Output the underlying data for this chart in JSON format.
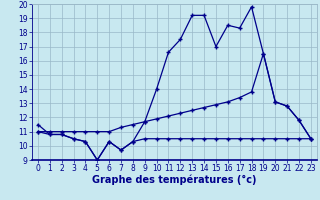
{
  "xlabel": "Graphe des températures (°c)",
  "x": [
    0,
    1,
    2,
    3,
    4,
    5,
    6,
    7,
    8,
    9,
    10,
    11,
    12,
    13,
    14,
    15,
    16,
    17,
    18,
    19,
    20,
    21,
    22,
    23
  ],
  "line_max": [
    11.5,
    10.8,
    10.8,
    10.5,
    10.3,
    9.0,
    10.3,
    9.7,
    10.3,
    11.7,
    14.0,
    16.6,
    17.5,
    19.2,
    19.2,
    17.0,
    18.5,
    18.3,
    19.8,
    16.5,
    13.1,
    12.8,
    11.8,
    10.5
  ],
  "line_avg": [
    11.0,
    11.0,
    11.0,
    11.0,
    11.0,
    11.0,
    11.0,
    11.3,
    11.5,
    11.7,
    11.9,
    12.1,
    12.3,
    12.5,
    12.7,
    12.9,
    13.1,
    13.4,
    13.8,
    16.5,
    13.1,
    12.8,
    11.8,
    10.5
  ],
  "line_min": [
    11.0,
    10.8,
    10.8,
    10.5,
    10.3,
    9.0,
    10.3,
    9.7,
    10.3,
    10.5,
    10.5,
    10.5,
    10.5,
    10.5,
    10.5,
    10.5,
    10.5,
    10.5,
    10.5,
    10.5,
    10.5,
    10.5,
    10.5,
    10.5
  ],
  "line_color": "#00008b",
  "bg_color": "#c8e8f0",
  "grid_color": "#9ab8c8",
  "ylim": [
    9,
    20
  ],
  "yticks": [
    9,
    10,
    11,
    12,
    13,
    14,
    15,
    16,
    17,
    18,
    19,
    20
  ],
  "xticks": [
    0,
    1,
    2,
    3,
    4,
    5,
    6,
    7,
    8,
    9,
    10,
    11,
    12,
    13,
    14,
    15,
    16,
    17,
    18,
    19,
    20,
    21,
    22,
    23
  ],
  "marker": "+",
  "markersize": 3.5,
  "linewidth": 0.9,
  "xlabel_fontsize": 7,
  "tick_fontsize": 5.5
}
